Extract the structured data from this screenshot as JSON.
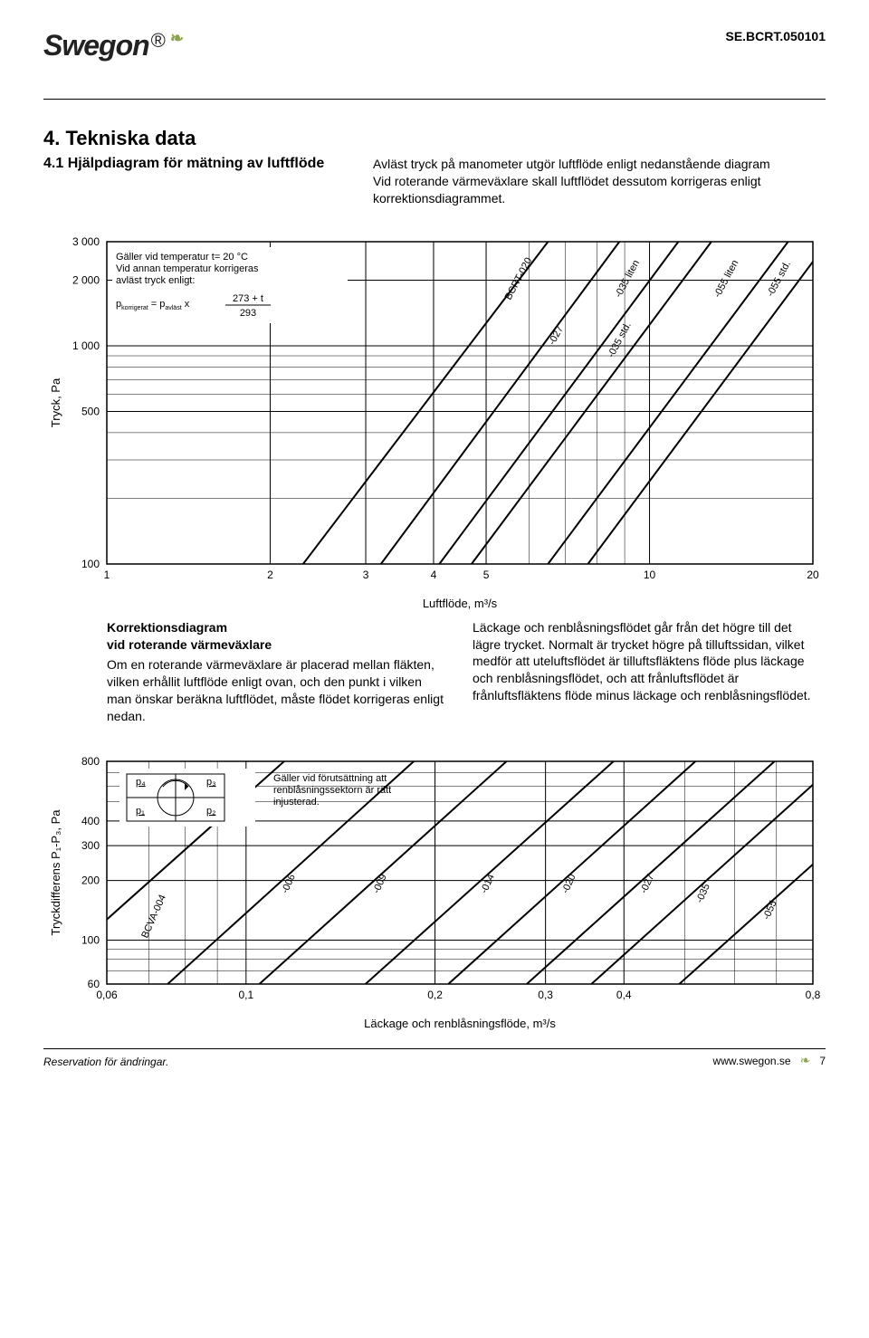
{
  "header": {
    "logo": "Swegon",
    "doc_code": "SE.BCRT.050101"
  },
  "title": "4. Tekniska data",
  "subtitle": "4.1 Hjälpdiagram för mätning av luftflöde",
  "intro": "Avläst tryck på manometer utgör luftflöde enligt nedanstående diagram\nVid roterande värmeväxlare skall luftflödet dessutom korrigeras enligt korrektionsdiagrammet.",
  "chart1": {
    "type": "line-log-log",
    "bg": "#ffffff",
    "grid": "#000000",
    "stroke": "#000000",
    "ylabel": "Tryck, Pa",
    "xlabel": "Luftflöde, m³/s",
    "ylim": [
      100,
      3000
    ],
    "xlim": [
      1,
      20
    ],
    "yticks": [
      100,
      500,
      1000,
      2000,
      3000
    ],
    "xticks": [
      1,
      2,
      3,
      4,
      5,
      10,
      20
    ],
    "legend_box": {
      "lines": [
        "Gäller vid temperatur t= 20 °C",
        "Vid annan temperatur korrigeras",
        "avläst tryck enligt:"
      ],
      "formula_left": "p",
      "formula_sub1": "korrigerat",
      "formula_mid": " = p",
      "formula_sub2": "avläst",
      "formula_x": " x",
      "formula_num": "273 + t",
      "formula_den": "293"
    },
    "curves": [
      {
        "label": "BCRT-020",
        "x1_at_y100": 2.3,
        "x2_at_y3000": 6.5,
        "lx": 5.8,
        "ly": 2000,
        "rot": -62
      },
      {
        "label": "-027",
        "x1_at_y100": 3.2,
        "x2_at_y3000": 8.8,
        "lx": 6.8,
        "ly": 1100,
        "rot": -62
      },
      {
        "label": "-035 liten",
        "x1_at_y100": 4.1,
        "x2_at_y3000": 11.3,
        "lx": 9.2,
        "ly": 2000,
        "rot": -62
      },
      {
        "label": "-035 std.",
        "x1_at_y100": 4.7,
        "x2_at_y3000": 13.0,
        "lx": 8.9,
        "ly": 1050,
        "rot": -62
      },
      {
        "label": "-055 liten",
        "x1_at_y100": 6.5,
        "x2_at_y3000": 18.0,
        "lx": 14.0,
        "ly": 2000,
        "rot": -62
      },
      {
        "label": "-055 std.",
        "x1_at_y100": 7.7,
        "x2_at_y3000": 21.3,
        "lx": 17.5,
        "ly": 2000,
        "rot": -62
      }
    ]
  },
  "korrektion": {
    "title": "Korrektionsdiagram\nvid roterande värmeväxlare",
    "left": "Om en roterande värmeväxlare är placerad mellan fläkten, vilken erhållit luftflöde enligt ovan, och den punkt i vilken man önskar beräkna luftflödet, måste flödet korrigeras enligt nedan.",
    "right": "Läckage och renblåsningsflödet går från det högre till det lägre trycket. Normalt är trycket högre på tilluftssidan, vilket medför att uteluftsflödet är tilluftsfläktens flöde plus läckage och renblåsningsflödet, och att frånluftsflödet är frånluftsfläktens flöde minus läckage och renblåsningsflödet."
  },
  "chart2": {
    "type": "line-log-log",
    "bg": "#ffffff",
    "grid": "#000000",
    "stroke": "#000000",
    "ylabel": "Tryckdifferens P₁-P₃, Pa",
    "xlabel": "Läckage och renblåsningsflöde, m³/s",
    "ylim": [
      60,
      800
    ],
    "xlim": [
      0.06,
      0.8
    ],
    "yticks": [
      60,
      100,
      200,
      300,
      400,
      800
    ],
    "xticks": [
      0.06,
      0.1,
      0.2,
      0.3,
      0.4,
      0.8
    ],
    "note": "Gäller vid förutsättning att renblåsningssektorn är rätt injusterad.",
    "plabels": [
      "p₄",
      "p₃",
      "p₁",
      "p₂"
    ],
    "curves": [
      {
        "label": "BCVA-004",
        "x1_at_y60": 0.046,
        "x2_at_y800": 0.115,
        "lx": 0.072,
        "ly": 130,
        "rot": -66
      },
      {
        "label": "-006",
        "x1_at_y60": 0.075,
        "x2_at_y800": 0.185,
        "lx": 0.118,
        "ly": 190,
        "rot": -66
      },
      {
        "label": "-009",
        "x1_at_y60": 0.105,
        "x2_at_y800": 0.26,
        "lx": 0.165,
        "ly": 190,
        "rot": -66
      },
      {
        "label": "-014",
        "x1_at_y60": 0.155,
        "x2_at_y800": 0.385,
        "lx": 0.245,
        "ly": 190,
        "rot": -66
      },
      {
        "label": "-020",
        "x1_at_y60": 0.21,
        "x2_at_y800": 0.52,
        "lx": 0.33,
        "ly": 190,
        "rot": -66
      },
      {
        "label": "-027",
        "x1_at_y60": 0.28,
        "x2_at_y800": 0.695,
        "lx": 0.44,
        "ly": 190,
        "rot": -66
      },
      {
        "label": "-035",
        "x1_at_y60": 0.355,
        "x2_at_y800": 0.88,
        "lx": 0.54,
        "ly": 170,
        "rot": -66
      },
      {
        "label": "-055",
        "x1_at_y60": 0.49,
        "x2_at_y800": 1.22,
        "lx": 0.69,
        "ly": 140,
        "rot": -66
      }
    ]
  },
  "footer": {
    "left": "Reservation för ändringar.",
    "url": "www.swegon.se",
    "page": "7"
  }
}
